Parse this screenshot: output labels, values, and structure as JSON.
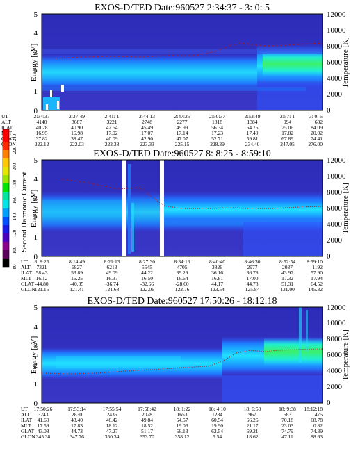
{
  "chart_data": {
    "type": "heatmap",
    "colorbar": {
      "label": "Second Harmonic Current",
      "ticks": [
        "80",
        "100",
        "120",
        "140",
        "160",
        "180",
        "200",
        "220",
        "240"
      ],
      "range": [
        80,
        240
      ],
      "colors": [
        "#000000",
        "#5a005a",
        "#8a008a",
        "#4a00c0",
        "#1a1ae6",
        "#0050ff",
        "#00a0ff",
        "#00e6e6",
        "#00e6a0",
        "#00e600",
        "#9ae600",
        "#e6e600",
        "#ffc800",
        "#ff8000",
        "#ff2a00",
        "#ff0000"
      ]
    },
    "panels": [
      {
        "title": "EXOS-D/TED   Date:960527  2:34:37 - 3: 0: 5",
        "ylabel": "Energy [eV]",
        "ylabel_right": "Temperature [K]",
        "ylim": [
          0,
          5
        ],
        "y2lim": [
          0,
          12000
        ],
        "yticks": [
          "0",
          "1",
          "2",
          "3",
          "4",
          "5"
        ],
        "y2ticks": [
          "0",
          "2000",
          "4000",
          "6000",
          "8000",
          "10000",
          "12000"
        ],
        "xticks": [
          "2:34:37",
          "2:37:49",
          "2:41: 1",
          "2:44:13",
          "2:47:25",
          "2:50:37",
          "2:53:49",
          "2:57: 1",
          "3: 0: 5"
        ],
        "table": [
          {
            "label": "UT",
            "values": [
              "2:34:37",
              "2:37:49",
              "2:41: 1",
              "2:44:13",
              "2:47:25",
              "2:50:37",
              "2:53:49",
              "2:57: 1",
              "3: 0: 5"
            ]
          },
          {
            "label": "ALT",
            "values": [
              "4140",
              "3687",
              "3221",
              "2748",
              "2277",
              "1818",
              "1384",
              "994",
              "682"
            ]
          },
          {
            "label": "ILAT",
            "values": [
              "40.28",
              "40.90",
              "42.54",
              "45.49",
              "49.99",
              "56.34",
              "64.75",
              "75.06",
              "84.09"
            ]
          },
          {
            "label": "MLT",
            "values": [
              "16.95",
              "16.98",
              "17.02",
              "17.07",
              "17.14",
              "17.23",
              "17.40",
              "17.82",
              "20.02"
            ]
          },
          {
            "label": "GLAT",
            "values": [
              "37.82",
              "38.47",
              "40.09",
              "42.90",
              "47.07",
              "52.71",
              "59.81",
              "67.89",
              "74.41"
            ]
          },
          {
            "label": "GLON",
            "values": [
              "222.12",
              "222.03",
              "222.38",
              "223.33",
              "225.15",
              "228.39",
              "234.40",
              "247.05",
              "276.00"
            ]
          }
        ]
      },
      {
        "title": "EXOS-D/TED   Date:960527  8: 8:25 - 8:59:10",
        "ylabel": "Energy [eV]",
        "ylabel_right": "Temperature [K]",
        "ylim": [
          0,
          5
        ],
        "y2lim": [
          0,
          12000
        ],
        "yticks": [
          "0",
          "1",
          "2",
          "3",
          "4",
          "5"
        ],
        "y2ticks": [
          "0",
          "2000",
          "4000",
          "6000",
          "8000",
          "10000",
          "12000"
        ],
        "xticks": [
          "8: 8:25",
          "8:14:49",
          "8:21:13",
          "8:27:30",
          "8:34:16",
          "8:40:40",
          "8:46:30",
          "8:52:54",
          "8:59:10"
        ],
        "table": [
          {
            "label": "UT",
            "values": [
              "8: 8:25",
              "8:14:49",
              "8:21:13",
              "8:27:30",
              "8:34:16",
              "8:40:40",
              "8:46:30",
              "8:52:54",
              "8:59:10"
            ]
          },
          {
            "label": "ALT",
            "values": [
              "7321",
              "6827",
              "6213",
              "5545",
              "4705",
              "3826",
              "2977",
              "2037",
              "1192"
            ]
          },
          {
            "label": "ILAT",
            "values": [
              "58.43",
              "53.89",
              "49.09",
              "44.22",
              "39.29",
              "36.16",
              "36.78",
              "43.97",
              "57.90"
            ]
          },
          {
            "label": "MLT",
            "values": [
              "16.12",
              "16.25",
              "16.37",
              "16.50",
              "16.64",
              "16.81",
              "17.00",
              "17.32",
              "17.94"
            ]
          },
          {
            "label": "GLAT",
            "values": [
              "-44.80",
              "-40.85",
              "-36.74",
              "-32.66",
              "-28.60",
              "44.17",
              "44.78",
              "51.31",
              "64.52"
            ]
          },
          {
            "label": "GLON",
            "values": [
              "121.15",
              "121.41",
              "121.68",
              "122.06",
              "122.76",
              "123.54",
              "125.84",
              "131.00",
              "145.32"
            ]
          }
        ]
      },
      {
        "title": "EXOS-D/TED   Date:960527  17:50:26 - 18:12:18",
        "ylabel": "Energy [eV]",
        "ylabel_right": "Temperature [K]",
        "ylim": [
          0,
          5
        ],
        "y2lim": [
          0,
          12000
        ],
        "yticks": [
          "0",
          "1",
          "2",
          "3",
          "4",
          "5"
        ],
        "y2ticks": [
          "0",
          "2000",
          "4000",
          "6000",
          "8000",
          "10000",
          "12000"
        ],
        "xticks": [
          "17:50:26",
          "17:53:14",
          "17:55:54",
          "17:58:42",
          "18: 1:22",
          "18: 4:10",
          "18: 6:50",
          "18: 9:38",
          "18:12:18"
        ],
        "table": [
          {
            "label": "UT",
            "values": [
              "17:50:26",
              "17:53:14",
              "17:55:54",
              "17:58:42",
              "18: 1:22",
              "18: 4:10",
              "18: 6:50",
              "18: 9:38",
              "18:12:18"
            ]
          },
          {
            "label": "ALT",
            "values": [
              "3243",
              "2830",
              "2436",
              "2028",
              "1653",
              "1284",
              "967",
              "683",
              "475"
            ]
          },
          {
            "label": "ILAT",
            "values": [
              "41.60",
              "43.40",
              "46.42",
              "49.84",
              "54.57",
              "60.54",
              "66.26",
              "70.18",
              "68.78"
            ]
          },
          {
            "label": "MLT",
            "values": [
              "17.59",
              "17.83",
              "18.12",
              "18.52",
              "19.06",
              "19.90",
              "21.17",
              "23.03",
              "0.82"
            ]
          },
          {
            "label": "GLAT",
            "values": [
              "43.08",
              "44.73",
              "47.27",
              "51.17",
              "56.13",
              "62.54",
              "69.21",
              "74.79",
              "74.39"
            ]
          },
          {
            "label": "GLON",
            "values": [
              "345.38",
              "347.76",
              "350.34",
              "353.70",
              "358.12",
              "5.54",
              "18.62",
              "47.11",
              "88.63"
            ]
          }
        ]
      }
    ]
  }
}
